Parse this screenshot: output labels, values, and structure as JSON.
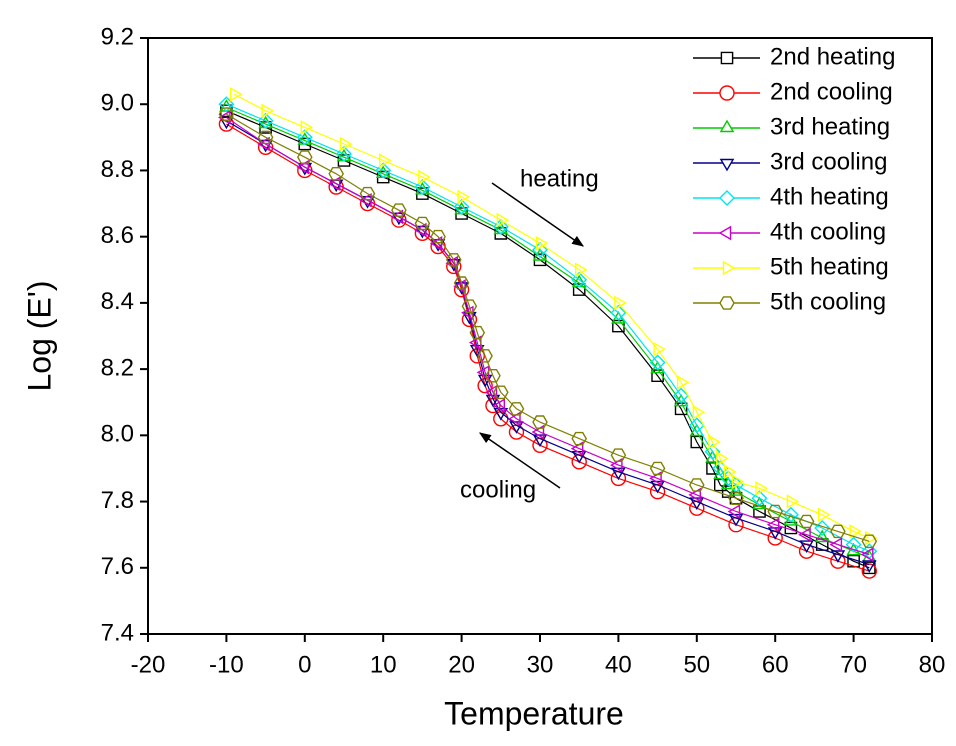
{
  "chart_data": {
    "type": "line",
    "x_label": "Temperature",
    "y_label": "Log (E')",
    "xlim": [
      -20,
      80
    ],
    "xticks": [
      -20,
      -10,
      0,
      10,
      20,
      30,
      40,
      50,
      60,
      70,
      80
    ],
    "ylim": [
      7.4,
      9.2
    ],
    "yticks": [
      7.4,
      7.6,
      7.8,
      {
        "value": 8,
        "label": "8.0"
      },
      8.2,
      8.4,
      8.6,
      8.8,
      {
        "value": 9,
        "label": "9.0"
      },
      9.2
    ],
    "legend": "top-right",
    "annotations": [
      "heating",
      "cooling"
    ],
    "series": [
      {
        "name": "2nd heating",
        "color": "#000000",
        "marker": "square",
        "x": [
          -10,
          -5,
          0,
          5,
          10,
          15,
          20,
          25,
          30,
          35,
          40,
          45,
          48,
          50,
          52,
          53,
          54,
          55,
          58,
          62,
          66,
          70,
          72
        ],
        "values": [
          8.98,
          8.93,
          8.88,
          8.83,
          8.78,
          8.73,
          8.67,
          8.61,
          8.53,
          8.44,
          8.33,
          8.18,
          8.08,
          7.98,
          7.9,
          7.85,
          7.83,
          7.81,
          7.77,
          7.72,
          7.67,
          7.62,
          7.6
        ]
      },
      {
        "name": "2nd cooling",
        "color": "#ff0000",
        "marker": "circle",
        "x": [
          72,
          68,
          64,
          60,
          55,
          50,
          45,
          40,
          35,
          30,
          27,
          25,
          24,
          23,
          22,
          21,
          20,
          19,
          17,
          15,
          12,
          8,
          4,
          0,
          -5,
          -10
        ],
        "values": [
          7.59,
          7.62,
          7.65,
          7.69,
          7.73,
          7.78,
          7.83,
          7.87,
          7.92,
          7.97,
          8.01,
          8.05,
          8.09,
          8.15,
          8.24,
          8.35,
          8.44,
          8.51,
          8.57,
          8.61,
          8.65,
          8.7,
          8.75,
          8.8,
          8.87,
          8.94
        ]
      },
      {
        "name": "3rd heating",
        "color": "#00cc00",
        "marker": "triangle-up",
        "x": [
          -10,
          -5,
          0,
          5,
          10,
          15,
          20,
          25,
          30,
          35,
          40,
          45,
          48,
          50,
          52,
          53,
          54,
          55,
          58,
          62,
          66,
          70,
          72
        ],
        "values": [
          8.99,
          8.94,
          8.89,
          8.84,
          8.79,
          8.74,
          8.68,
          8.62,
          8.54,
          8.46,
          8.35,
          8.2,
          8.1,
          8.01,
          7.93,
          7.88,
          7.85,
          7.83,
          7.79,
          7.74,
          7.69,
          7.65,
          7.63
        ]
      },
      {
        "name": "3rd cooling",
        "color": "#00008b",
        "marker": "triangle-down",
        "x": [
          72,
          68,
          64,
          60,
          55,
          50,
          45,
          40,
          35,
          30,
          27,
          25,
          24,
          23,
          22,
          21,
          20,
          19,
          17,
          15,
          12,
          8,
          4,
          0,
          -5,
          -10
        ],
        "values": [
          7.61,
          7.64,
          7.67,
          7.71,
          7.75,
          7.8,
          7.85,
          7.89,
          7.94,
          7.99,
          8.03,
          8.07,
          8.11,
          8.17,
          8.26,
          8.36,
          8.45,
          8.52,
          8.58,
          8.62,
          8.66,
          8.71,
          8.76,
          8.81,
          8.88,
          8.95
        ]
      },
      {
        "name": "4th heating",
        "color": "#00e5ee",
        "marker": "diamond",
        "x": [
          -10,
          -5,
          0,
          5,
          10,
          15,
          20,
          25,
          30,
          35,
          40,
          45,
          48,
          50,
          52,
          53,
          54,
          55,
          58,
          62,
          66,
          70,
          72
        ],
        "values": [
          9.0,
          8.95,
          8.9,
          8.85,
          8.8,
          8.75,
          8.69,
          8.63,
          8.56,
          8.47,
          8.37,
          8.22,
          8.12,
          8.03,
          7.95,
          7.9,
          7.87,
          7.85,
          7.81,
          7.76,
          7.72,
          7.67,
          7.65
        ]
      },
      {
        "name": "4th cooling",
        "color": "#cc00cc",
        "marker": "triangle-left",
        "x": [
          72,
          68,
          64,
          60,
          55,
          50,
          45,
          40,
          35,
          30,
          27,
          25,
          24,
          23,
          22,
          21,
          20,
          19,
          17,
          15,
          12,
          8,
          4,
          0,
          -5,
          -10
        ],
        "values": [
          7.64,
          7.67,
          7.7,
          7.73,
          7.77,
          7.82,
          7.87,
          7.91,
          7.96,
          8.01,
          8.05,
          8.09,
          8.13,
          8.19,
          8.28,
          8.37,
          8.45,
          8.52,
          8.58,
          8.62,
          8.66,
          8.71,
          8.76,
          8.81,
          8.88,
          8.96
        ]
      },
      {
        "name": "5th heating",
        "color": "#ffff00",
        "marker": "triangle-right",
        "x": [
          -9,
          -5,
          0,
          5,
          10,
          15,
          20,
          25,
          30,
          35,
          40,
          45,
          48,
          50,
          52,
          53,
          54,
          55,
          58,
          62,
          66,
          70,
          72
        ],
        "values": [
          9.03,
          8.98,
          8.93,
          8.88,
          8.83,
          8.78,
          8.72,
          8.65,
          8.58,
          8.5,
          8.4,
          8.26,
          8.16,
          8.07,
          7.98,
          7.93,
          7.89,
          7.86,
          7.84,
          7.8,
          7.76,
          7.71,
          7.69
        ]
      },
      {
        "name": "5th cooling",
        "color": "#808000",
        "marker": "hexagon",
        "x": [
          72,
          68,
          64,
          60,
          55,
          50,
          45,
          40,
          35,
          30,
          27,
          25,
          24,
          23,
          22,
          21,
          20,
          19,
          17,
          15,
          12,
          8,
          4,
          0,
          -5,
          -10
        ],
        "values": [
          7.68,
          7.71,
          7.74,
          7.77,
          7.81,
          7.85,
          7.9,
          7.94,
          7.99,
          8.04,
          8.08,
          8.13,
          8.18,
          8.24,
          8.31,
          8.39,
          8.46,
          8.53,
          8.6,
          8.64,
          8.68,
          8.73,
          8.79,
          8.84,
          8.9,
          8.97
        ]
      }
    ]
  }
}
